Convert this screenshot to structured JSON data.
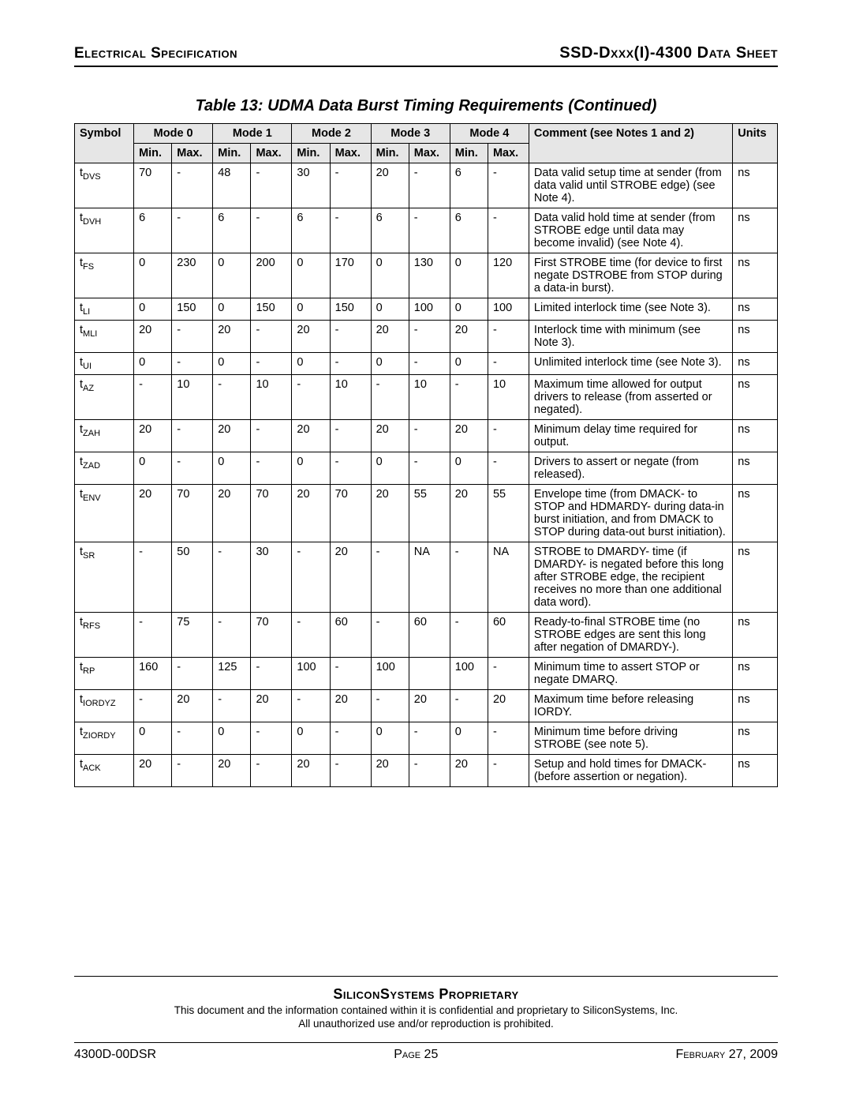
{
  "header": {
    "left": "Electrical Specification",
    "right": "SSD-Dxxx(I)-4300 Data Sheet"
  },
  "table": {
    "title": "Table 13:  UDMA Data Burst Timing Requirements  (Continued)",
    "symbol_hdr": "Symbol",
    "modes": [
      "Mode 0",
      "Mode 1",
      "Mode 2",
      "Mode 3",
      "Mode 4"
    ],
    "min_hdr": "Min.",
    "max_hdr": "Max.",
    "comment_hdr": "Comment (see Notes 1 and 2)",
    "units_hdr": "Units",
    "rows": [
      {
        "sym": "t",
        "sub": "DVS",
        "m": [
          [
            "70",
            "-"
          ],
          [
            "48",
            "-"
          ],
          [
            "30",
            "-"
          ],
          [
            "20",
            "-"
          ],
          [
            "6",
            "-"
          ]
        ],
        "comment": "Data valid setup time at sender (from data valid until STROBE edge) (see Note 4).",
        "units": "ns"
      },
      {
        "sym": "t",
        "sub": "DVH",
        "m": [
          [
            "6",
            "-"
          ],
          [
            "6",
            "-"
          ],
          [
            "6",
            "-"
          ],
          [
            "6",
            "-"
          ],
          [
            "6",
            "-"
          ]
        ],
        "comment": "Data valid hold time at sender (from STROBE edge until data may become invalid) (see Note 4).",
        "units": "ns"
      },
      {
        "sym": "t",
        "sub": "FS",
        "m": [
          [
            "0",
            "230"
          ],
          [
            "0",
            "200"
          ],
          [
            "0",
            "170"
          ],
          [
            "0",
            "130"
          ],
          [
            "0",
            "120"
          ]
        ],
        "comment": "First STROBE time (for device to first negate DSTROBE from STOP during a data-in burst).",
        "units": "ns"
      },
      {
        "sym": "t",
        "sub": "LI",
        "m": [
          [
            "0",
            "150"
          ],
          [
            "0",
            "150"
          ],
          [
            "0",
            "150"
          ],
          [
            "0",
            "100"
          ],
          [
            "0",
            "100"
          ]
        ],
        "comment": "Limited interlock time (see Note 3).",
        "units": "ns"
      },
      {
        "sym": "t",
        "sub": "MLI",
        "m": [
          [
            "20",
            "-"
          ],
          [
            "20",
            "-"
          ],
          [
            "20",
            "-"
          ],
          [
            "20",
            "-"
          ],
          [
            "20",
            "-"
          ]
        ],
        "comment": "Interlock time with minimum (see Note 3).",
        "units": "ns"
      },
      {
        "sym": "t",
        "sub": "UI",
        "m": [
          [
            "0",
            "-"
          ],
          [
            "0",
            "-"
          ],
          [
            "0",
            "-"
          ],
          [
            "0",
            "-"
          ],
          [
            "0",
            "-"
          ]
        ],
        "comment": "Unlimited interlock time (see Note 3).",
        "units": "ns"
      },
      {
        "sym": "t",
        "sub": "AZ",
        "m": [
          [
            "-",
            "10"
          ],
          [
            "-",
            "10"
          ],
          [
            "-",
            "10"
          ],
          [
            "-",
            "10"
          ],
          [
            "-",
            "10"
          ]
        ],
        "comment": "Maximum time allowed for output drivers to release (from asserted or negated).",
        "units": "ns"
      },
      {
        "sym": "t",
        "sub": "ZAH",
        "m": [
          [
            "20",
            "-"
          ],
          [
            "20",
            "-"
          ],
          [
            "20",
            "-"
          ],
          [
            "20",
            "-"
          ],
          [
            "20",
            "-"
          ]
        ],
        "comment": "Minimum delay time required for output.",
        "units": "ns"
      },
      {
        "sym": "t",
        "sub": "ZAD",
        "m": [
          [
            "0",
            "-"
          ],
          [
            "0",
            "-"
          ],
          [
            "0",
            "-"
          ],
          [
            "0",
            "-"
          ],
          [
            "0",
            "-"
          ]
        ],
        "comment": "Drivers to assert or negate (from released).",
        "units": "ns"
      },
      {
        "sym": "t",
        "sub": "ENV",
        "m": [
          [
            "20",
            "70"
          ],
          [
            "20",
            "70"
          ],
          [
            "20",
            "70"
          ],
          [
            "20",
            "55"
          ],
          [
            "20",
            "55"
          ]
        ],
        "comment": "Envelope time (from DMACK- to STOP and HDMARDY- during data-in burst initiation, and from DMACK to STOP during data-out burst initiation).",
        "units": "ns"
      },
      {
        "sym": "t",
        "sub": "SR",
        "m": [
          [
            "-",
            "50"
          ],
          [
            "-",
            "30"
          ],
          [
            "-",
            "20"
          ],
          [
            "-",
            "NA"
          ],
          [
            "-",
            "NA"
          ]
        ],
        "comment": "STROBE to DMARDY- time (if DMARDY- is negated before this long after STROBE edge, the recipient receives no more than one additional data word).",
        "units": "ns"
      },
      {
        "sym": "t",
        "sub": "RFS",
        "m": [
          [
            "-",
            "75"
          ],
          [
            "-",
            "70"
          ],
          [
            "-",
            "60"
          ],
          [
            "-",
            "60"
          ],
          [
            "-",
            "60"
          ]
        ],
        "comment": "Ready-to-final STROBE time (no STROBE edges are sent this long after negation of DMARDY-).",
        "units": "ns"
      },
      {
        "sym": "t",
        "sub": "RP",
        "m": [
          [
            "160",
            "-"
          ],
          [
            "125",
            "-"
          ],
          [
            "100",
            "-"
          ],
          [
            "100",
            ""
          ],
          [
            "100",
            "-"
          ]
        ],
        "comment": "Minimum time to assert STOP or negate DMARQ.",
        "units": "ns"
      },
      {
        "sym": "t",
        "sub": "IORDYZ",
        "m": [
          [
            "-",
            "20"
          ],
          [
            "-",
            "20"
          ],
          [
            "-",
            "20"
          ],
          [
            "-",
            "20"
          ],
          [
            "-",
            "20"
          ]
        ],
        "comment": "Maximum time before releasing IORDY.",
        "units": "ns"
      },
      {
        "sym": "t",
        "sub": "ZIORDY",
        "m": [
          [
            "0",
            "-"
          ],
          [
            "0",
            "-"
          ],
          [
            "0",
            "-"
          ],
          [
            "0",
            "-"
          ],
          [
            "0",
            "-"
          ]
        ],
        "comment": "Minimum time before driving STROBE (see note 5).",
        "units": "ns"
      },
      {
        "sym": "t",
        "sub": "ACK",
        "m": [
          [
            "20",
            "-"
          ],
          [
            "20",
            "-"
          ],
          [
            "20",
            "-"
          ],
          [
            "20",
            "-"
          ],
          [
            "20",
            "-"
          ]
        ],
        "comment": "Setup and hold times for DMACK- (before assertion or negation).",
        "units": "ns"
      }
    ]
  },
  "footer": {
    "proprietary": "SiliconSystems Proprietary",
    "disclaimer1": "This document and the information contained within it is confidential and proprietary to SiliconSystems, Inc.",
    "disclaimer2": "All unauthorized use and/or reproduction is prohibited.",
    "doc_id": "4300D-00DSR",
    "page_label": "Page 25",
    "date": "February 27, 2009"
  }
}
